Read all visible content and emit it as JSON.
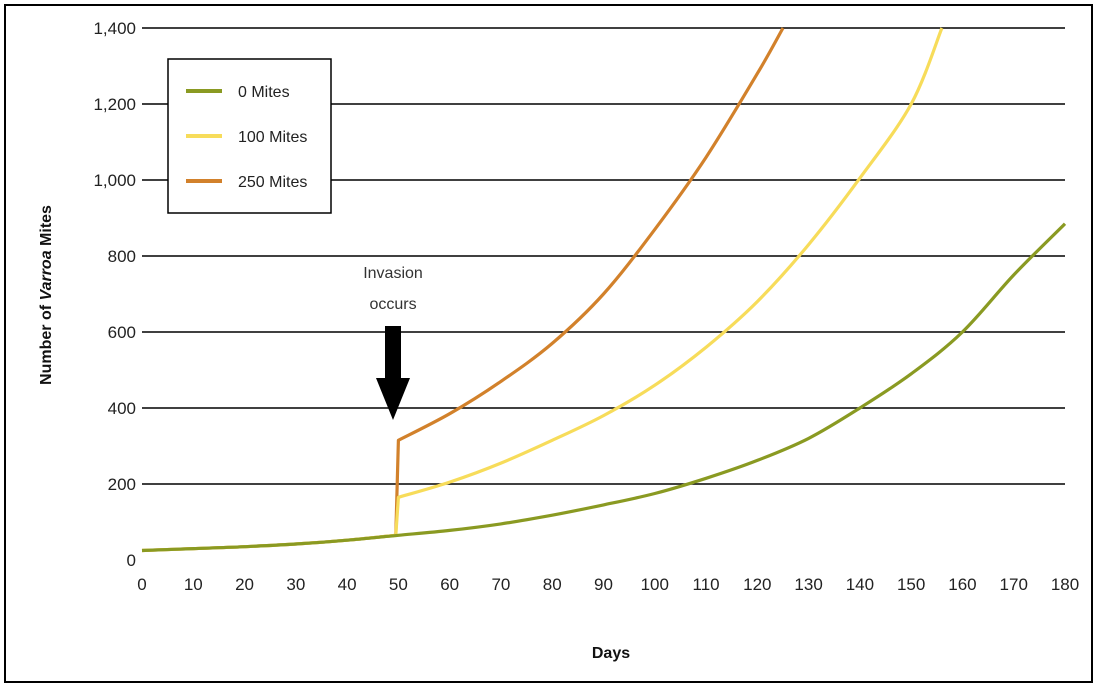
{
  "chart_data": {
    "type": "line",
    "xlabel": "Days",
    "ylabel_prefix": "Number of ",
    "ylabel_italic": "Varroa",
    "ylabel_suffix": " Mites",
    "xlim": [
      0,
      180
    ],
    "ylim": [
      0,
      1400
    ],
    "x_ticks": [
      0,
      10,
      20,
      30,
      40,
      50,
      60,
      70,
      80,
      90,
      100,
      110,
      120,
      130,
      140,
      150,
      160,
      170,
      180
    ],
    "y_ticks": [
      0,
      200,
      400,
      600,
      800,
      1000,
      1200,
      1400
    ],
    "y_tick_labels": [
      "0",
      "200",
      "400",
      "600",
      "800",
      "1,000",
      "1,200",
      "1,400"
    ],
    "grid": "horizontal",
    "legend_position": "top-left",
    "annotation": {
      "lines": [
        "Invasion",
        "occurs"
      ],
      "x": 50
    },
    "series": [
      {
        "name": "0 Mites",
        "color": "#8a9a22",
        "x": [
          0,
          10,
          20,
          30,
          40,
          50,
          60,
          70,
          80,
          90,
          100,
          110,
          120,
          130,
          140,
          150,
          160,
          170,
          180
        ],
        "y": [
          25,
          30,
          35,
          42,
          52,
          65,
          78,
          95,
          118,
          145,
          175,
          215,
          262,
          320,
          400,
          490,
          600,
          750,
          885
        ]
      },
      {
        "name": "100 Mites",
        "color": "#f7dc5a",
        "x": [
          0,
          10,
          20,
          30,
          40,
          49.5,
          50,
          60,
          70,
          80,
          90,
          100,
          110,
          120,
          130,
          140,
          150,
          156
        ],
        "y": [
          25,
          30,
          35,
          42,
          52,
          65,
          165,
          205,
          255,
          315,
          380,
          460,
          560,
          680,
          830,
          1005,
          1200,
          1400
        ]
      },
      {
        "name": "250 Mites",
        "color": "#d2812b",
        "x": [
          0,
          10,
          20,
          30,
          40,
          49.5,
          50,
          60,
          70,
          80,
          90,
          100,
          110,
          120,
          125
        ],
        "y": [
          25,
          30,
          35,
          42,
          52,
          65,
          315,
          385,
          470,
          570,
          700,
          870,
          1060,
          1280,
          1400
        ]
      }
    ]
  }
}
